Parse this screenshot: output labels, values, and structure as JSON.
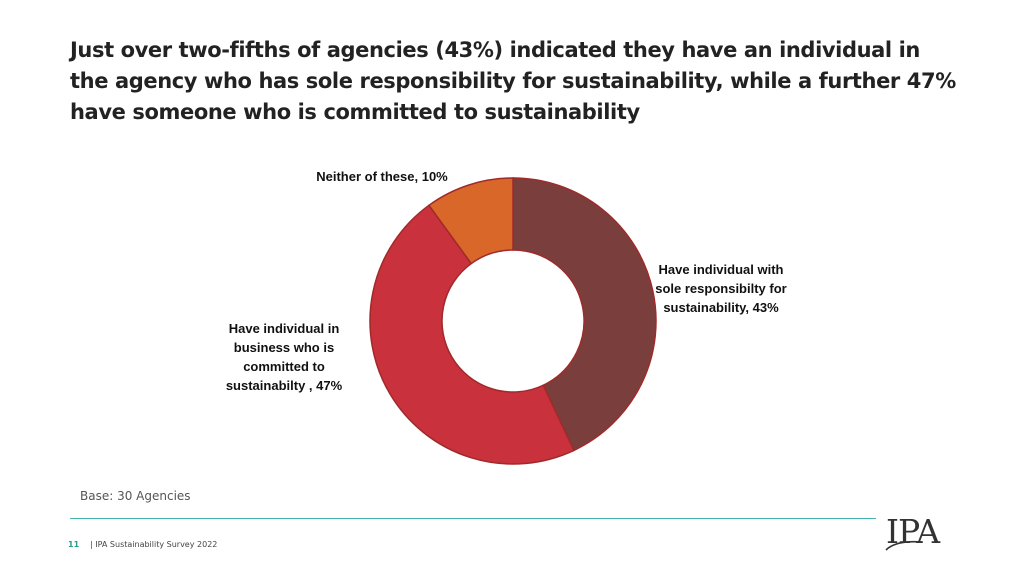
{
  "title": {
    "line1": "Just over two-fifths of agencies (43%) indicated they have an individual in",
    "line2": "the agency who has sole responsibility for sustainability, while a further 47%",
    "line3": "have someone who is committed to sustainability"
  },
  "chart_data": {
    "type": "pie",
    "donut": true,
    "slices": [
      {
        "label_lines": [
          "Have individual with",
          "sole responsibilty for",
          "sustainability, 43%"
        ],
        "value": 43,
        "color": "#7a3f3c"
      },
      {
        "label_lines": [
          "Have individual in",
          "business  who is",
          "committed to",
          "sustainabilty , 47%"
        ],
        "value": 47,
        "color": "#c9313d"
      },
      {
        "label_lines": [
          "Neither of these, 10%"
        ],
        "value": 10,
        "color": "#d9672a"
      }
    ],
    "slice_border_color": "#a02a2a",
    "legend": "none"
  },
  "base_note": "Base: 30 Agencies",
  "footer": {
    "page_number": "11",
    "text": "| IPA Sustainability Survey 2022"
  },
  "logo": {
    "text": "IPA"
  },
  "colors": {
    "title": "#222222",
    "rule": "#45b3ad",
    "page_number": "#2a9d8f"
  }
}
